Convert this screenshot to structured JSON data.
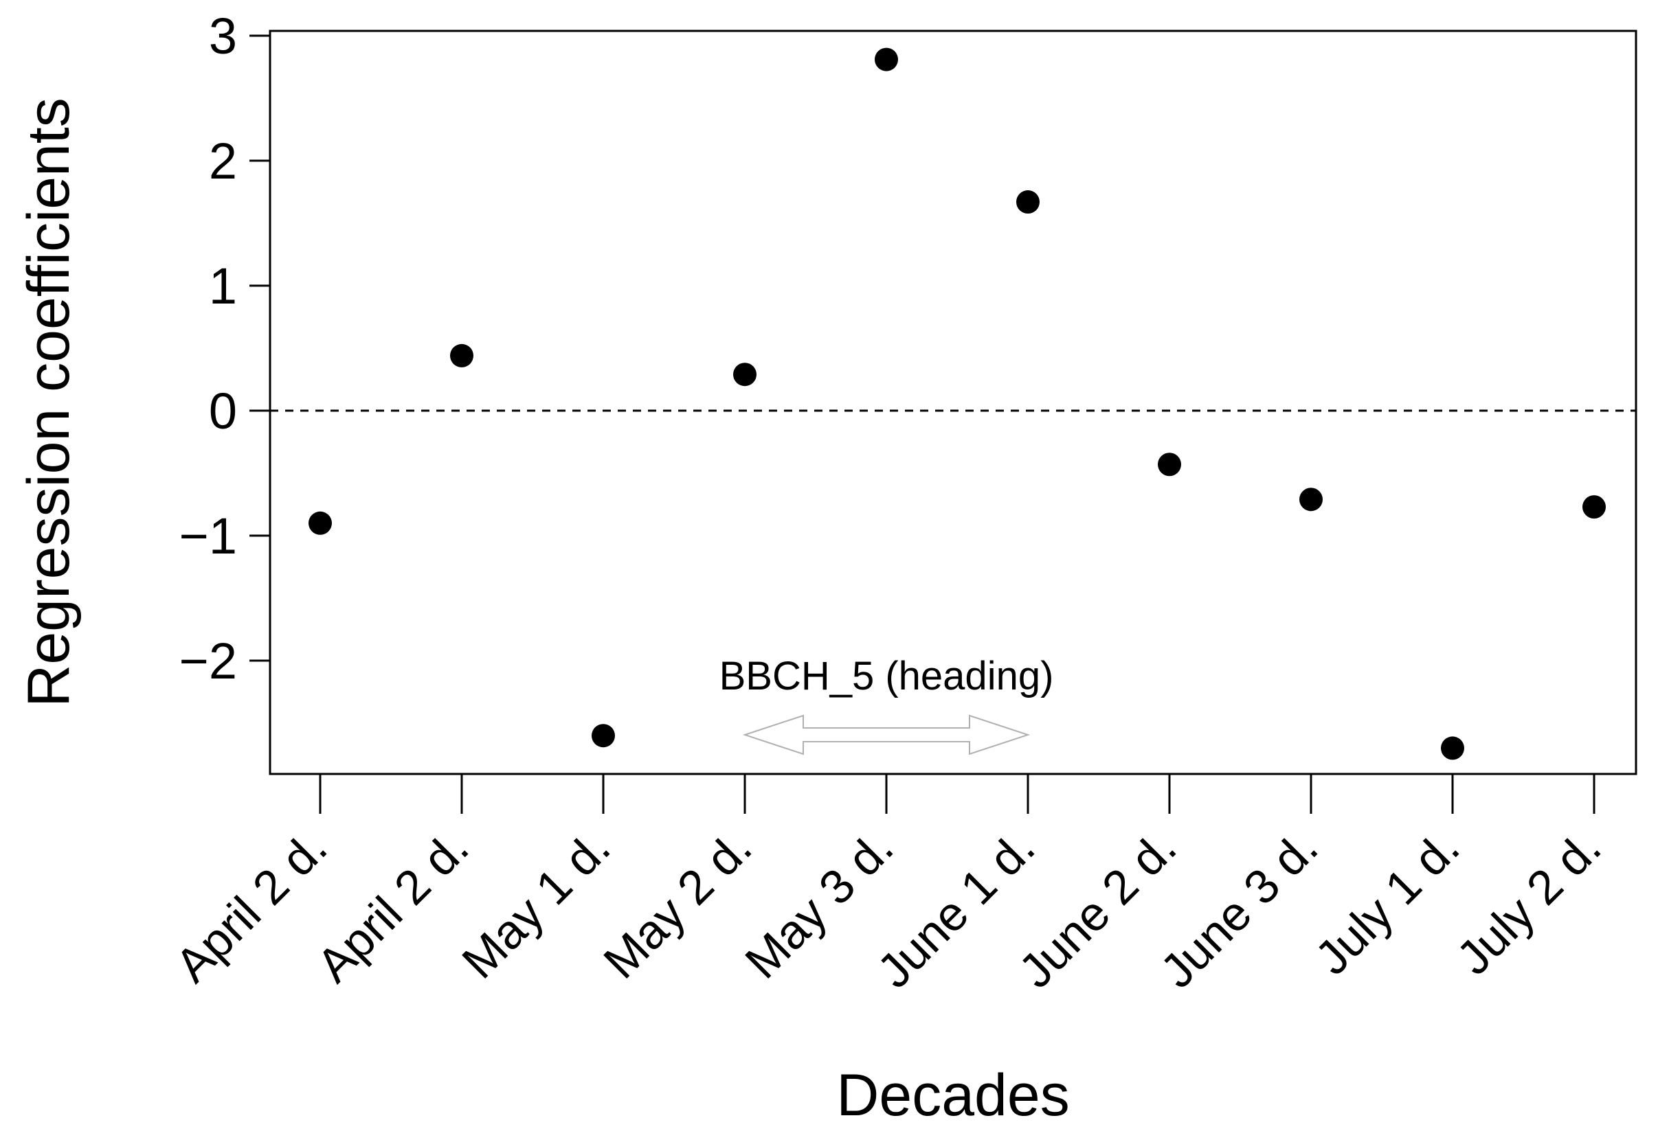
{
  "chart_data": {
    "type": "scatter",
    "title": "",
    "xlabel": "Decades",
    "ylabel": "Regression coefficients",
    "categories": [
      "April 2 d.",
      "April 2 d.",
      "May 1 d.",
      "May 2 d.",
      "May 3 d.",
      "June 1 d.",
      "June 2 d.",
      "June 3 d.",
      "July 1 d.",
      "July 2 d."
    ],
    "series": [
      {
        "values": [
          -0.9,
          0.44,
          -2.6,
          0.29,
          2.81,
          1.67,
          -0.43,
          -0.71,
          -2.7,
          -0.77
        ]
      }
    ],
    "ylim": [
      -2.9,
      3.05
    ],
    "yticks": [
      -2,
      -1,
      0,
      1,
      2,
      3
    ],
    "ytick_labels": [
      "−2",
      "−1",
      "0",
      "1",
      "2",
      "3"
    ],
    "reference_line": {
      "y": 0,
      "style": "dashed"
    },
    "annotation": {
      "text": "BBCH_5 (heading)",
      "from_category": "May 2 d.",
      "to_category": "June 1 d.",
      "arrow": "double-headed"
    },
    "grid": false,
    "legend": "none"
  }
}
